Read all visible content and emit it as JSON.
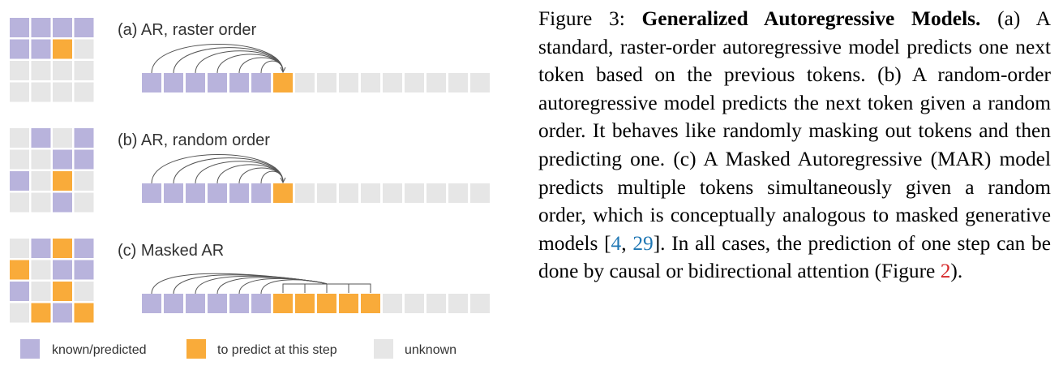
{
  "colors": {
    "known": "#b8b3dc",
    "predict": "#f9ab3a",
    "unknown": "#e6e6e6",
    "arc": "#555555",
    "cite_link": "#1f77b4",
    "figure_link": "#d62728"
  },
  "panels": [
    {
      "label": "(a) AR, raster order",
      "grid": [
        [
          1,
          1,
          1,
          1
        ],
        [
          1,
          1,
          2,
          0
        ],
        [
          0,
          0,
          0,
          0
        ],
        [
          0,
          0,
          0,
          0
        ]
      ],
      "sequence": [
        1,
        1,
        1,
        1,
        1,
        1,
        2,
        0,
        0,
        0,
        0,
        0,
        0,
        0,
        0,
        0
      ],
      "arcs": "single"
    },
    {
      "label": "(b) AR, random order",
      "grid": [
        [
          0,
          1,
          0,
          1
        ],
        [
          0,
          0,
          1,
          1
        ],
        [
          1,
          0,
          2,
          0
        ],
        [
          0,
          0,
          1,
          0
        ]
      ],
      "sequence": [
        1,
        1,
        1,
        1,
        1,
        1,
        2,
        0,
        0,
        0,
        0,
        0,
        0,
        0,
        0,
        0
      ],
      "arcs": "single"
    },
    {
      "label": "(c) Masked AR",
      "grid": [
        [
          0,
          1,
          2,
          1
        ],
        [
          2,
          0,
          1,
          1
        ],
        [
          1,
          0,
          2,
          0
        ],
        [
          0,
          2,
          1,
          2
        ]
      ],
      "sequence": [
        1,
        1,
        1,
        1,
        1,
        1,
        2,
        2,
        2,
        2,
        2,
        0,
        0,
        0,
        0,
        0
      ],
      "arcs": "multi"
    }
  ],
  "legend": [
    {
      "label": "known/predicted",
      "state": "known"
    },
    {
      "label": "to predict at this step",
      "state": "predict"
    },
    {
      "label": "unknown",
      "state": "unknown"
    }
  ],
  "caption": {
    "figure_label": "Figure 3:",
    "title": "Generalized Autoregressive Models.",
    "text_1": "(a) A standard, raster-order autoregressive model predicts one next token based on the previous to­kens. (b) A random-order autoregressive model predicts the next token given a random order. It behaves like randomly masking out tokens and then predicting one. (c) A Masked Autoregressive (MAR) model predicts multiple tokens simultane­ously given a random order, which is conceptually analogous to masked generative models [",
    "cite_1": "4",
    "cite_sep": ", ",
    "cite_2": "29",
    "text_2": "]. In all cases, the prediction of one step can be done by causal or bidirectional attention (Figure ",
    "figure_ref": "2",
    "text_3": ")."
  }
}
